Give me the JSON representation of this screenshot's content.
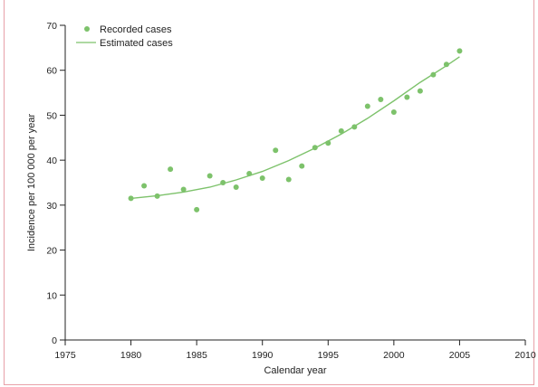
{
  "chart_data": {
    "type": "scatter",
    "xlabel": "Calendar year",
    "ylabel": "Incidence per 100 000 per year",
    "xlim": [
      1975,
      2010
    ],
    "ylim": [
      0,
      70
    ],
    "x_ticks": [
      1975,
      1980,
      1985,
      1990,
      1995,
      2000,
      2005,
      2010
    ],
    "y_ticks": [
      0,
      10,
      20,
      30,
      40,
      50,
      60,
      70
    ],
    "grid": false,
    "legend_position": "top-left",
    "series": [
      {
        "name": "Recorded cases",
        "kind": "points",
        "color": "#7dc26b",
        "x": [
          1980,
          1981,
          1982,
          1983,
          1984,
          1985,
          1986,
          1987,
          1988,
          1989,
          1990,
          1991,
          1992,
          1993,
          1994,
          1995,
          1996,
          1997,
          1998,
          1999,
          2000,
          2001,
          2002,
          2003,
          2004,
          2005
        ],
        "y": [
          31.5,
          34.3,
          32.0,
          38.0,
          33.5,
          29.0,
          36.5,
          35.0,
          34.0,
          37.0,
          36.0,
          42.2,
          35.7,
          38.7,
          42.8,
          43.8,
          46.5,
          47.4,
          52.0,
          53.5,
          50.7,
          54.0,
          55.4,
          59.0,
          61.3,
          64.3
        ]
      },
      {
        "name": "Estimated cases",
        "kind": "line",
        "color": "#7dc26b",
        "x": [
          1980,
          1982,
          1984,
          1986,
          1988,
          1990,
          1992,
          1994,
          1996,
          1998,
          2000,
          2002,
          2004,
          2005
        ],
        "y": [
          31.5,
          32.1,
          32.9,
          34.0,
          35.6,
          37.5,
          39.9,
          42.7,
          45.8,
          49.3,
          53.2,
          57.3,
          61.0,
          63.0
        ]
      }
    ]
  }
}
